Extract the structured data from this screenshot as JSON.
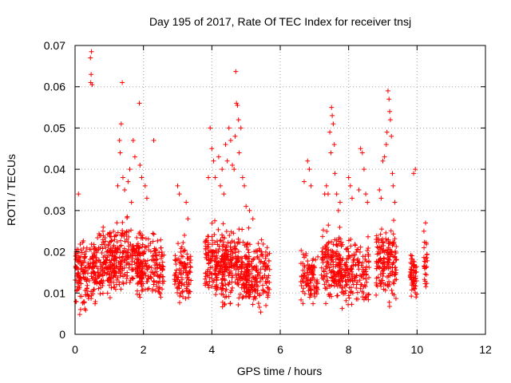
{
  "chart_data": {
    "type": "scatter",
    "title": "Day 195 of 2017, Rate Of TEC Index for receiver tnsj",
    "xlabel": "GPS time / hours",
    "ylabel": "ROTI / TECUs",
    "xlim": [
      0,
      12
    ],
    "ylim": [
      0,
      0.07
    ],
    "x_ticks": [
      "0",
      "2",
      "4",
      "6",
      "8",
      "10",
      "12"
    ],
    "y_ticks": [
      "0",
      "0.01",
      "0.02",
      "0.03",
      "0.04",
      "0.05",
      "0.06",
      "0.07"
    ],
    "grid": true,
    "marker": "+",
    "color": "#ff0000",
    "series": [
      {
        "name": "ROTI",
        "clusters": [
          {
            "x0": 0.0,
            "x1": 0.6,
            "ymin": 0.004,
            "ymax": 0.026,
            "n": 150
          },
          {
            "x0": 0.5,
            "x1": 1.2,
            "ymin": 0.006,
            "ymax": 0.028,
            "n": 160
          },
          {
            "x0": 1.0,
            "x1": 2.0,
            "ymin": 0.007,
            "ymax": 0.03,
            "n": 230
          },
          {
            "x0": 1.8,
            "x1": 2.6,
            "ymin": 0.006,
            "ymax": 0.027,
            "n": 170
          },
          {
            "x0": 2.9,
            "x1": 3.4,
            "ymin": 0.004,
            "ymax": 0.025,
            "n": 110
          },
          {
            "x0": 3.8,
            "x1": 4.4,
            "ymin": 0.005,
            "ymax": 0.03,
            "n": 160
          },
          {
            "x0": 4.3,
            "x1": 5.1,
            "ymin": 0.004,
            "ymax": 0.028,
            "n": 230
          },
          {
            "x0": 5.0,
            "x1": 5.7,
            "ymin": 0.004,
            "ymax": 0.026,
            "n": 150
          },
          {
            "x0": 6.6,
            "x1": 7.1,
            "ymin": 0.005,
            "ymax": 0.022,
            "n": 100
          },
          {
            "x0": 7.2,
            "x1": 7.8,
            "ymin": 0.005,
            "ymax": 0.028,
            "n": 150
          },
          {
            "x0": 7.7,
            "x1": 8.6,
            "ymin": 0.004,
            "ymax": 0.026,
            "n": 190
          },
          {
            "x0": 8.8,
            "x1": 9.4,
            "ymin": 0.005,
            "ymax": 0.03,
            "n": 170
          },
          {
            "x0": 9.8,
            "x1": 10.0,
            "ymin": 0.006,
            "ymax": 0.022,
            "n": 60
          },
          {
            "x0": 10.2,
            "x1": 10.3,
            "ymin": 0.007,
            "ymax": 0.027,
            "n": 25
          }
        ],
        "peaks": [
          [
            0.1,
            0.034
          ],
          [
            0.45,
            0.067
          ],
          [
            0.48,
            0.0685
          ],
          [
            0.47,
            0.063
          ],
          [
            0.46,
            0.061
          ],
          [
            0.5,
            0.0605
          ],
          [
            1.3,
            0.047
          ],
          [
            1.35,
            0.051
          ],
          [
            1.38,
            0.061
          ],
          [
            1.32,
            0.044
          ],
          [
            1.4,
            0.038
          ],
          [
            1.45,
            0.035
          ],
          [
            1.7,
            0.047
          ],
          [
            1.75,
            0.043
          ],
          [
            1.88,
            0.056
          ],
          [
            1.9,
            0.041
          ],
          [
            1.95,
            0.038
          ],
          [
            2.3,
            0.047
          ],
          [
            2.05,
            0.036
          ],
          [
            2.1,
            0.033
          ],
          [
            1.6,
            0.04
          ],
          [
            1.55,
            0.037
          ],
          [
            1.25,
            0.036
          ],
          [
            1.65,
            0.032
          ],
          [
            3.0,
            0.036
          ],
          [
            3.05,
            0.034
          ],
          [
            3.3,
            0.028
          ],
          [
            3.25,
            0.032
          ],
          [
            3.2,
            0.024
          ],
          [
            3.95,
            0.05
          ],
          [
            4.0,
            0.045
          ],
          [
            4.05,
            0.042
          ],
          [
            3.9,
            0.038
          ],
          [
            4.1,
            0.038
          ],
          [
            4.2,
            0.043
          ],
          [
            4.25,
            0.036
          ],
          [
            4.3,
            0.04
          ],
          [
            4.35,
            0.034
          ],
          [
            4.5,
            0.05
          ],
          [
            4.55,
            0.047
          ],
          [
            4.45,
            0.042
          ],
          [
            4.7,
            0.0637
          ],
          [
            4.72,
            0.056
          ],
          [
            4.75,
            0.0555
          ],
          [
            4.78,
            0.052
          ],
          [
            4.68,
            0.048
          ],
          [
            4.8,
            0.044
          ],
          [
            4.85,
            0.05
          ],
          [
            4.9,
            0.038
          ],
          [
            4.95,
            0.036
          ],
          [
            5.0,
            0.031
          ],
          [
            5.1,
            0.03
          ],
          [
            5.2,
            0.028
          ],
          [
            4.6,
            0.041
          ],
          [
            4.65,
            0.04
          ],
          [
            4.4,
            0.046
          ],
          [
            6.7,
            0.037
          ],
          [
            6.8,
            0.042
          ],
          [
            6.85,
            0.04
          ],
          [
            6.9,
            0.036
          ],
          [
            7.3,
            0.034
          ],
          [
            7.35,
            0.036
          ],
          [
            7.4,
            0.034
          ],
          [
            7.45,
            0.049
          ],
          [
            7.5,
            0.055
          ],
          [
            7.52,
            0.053
          ],
          [
            7.55,
            0.051
          ],
          [
            7.48,
            0.044
          ],
          [
            7.58,
            0.046
          ],
          [
            7.6,
            0.039
          ],
          [
            7.65,
            0.034
          ],
          [
            7.7,
            0.03
          ],
          [
            7.75,
            0.032
          ],
          [
            8.0,
            0.038
          ],
          [
            8.05,
            0.036
          ],
          [
            8.1,
            0.033
          ],
          [
            8.3,
            0.035
          ],
          [
            8.35,
            0.045
          ],
          [
            8.4,
            0.044
          ],
          [
            8.45,
            0.04
          ],
          [
            8.5,
            0.034
          ],
          [
            8.55,
            0.032
          ],
          [
            8.9,
            0.035
          ],
          [
            8.95,
            0.033
          ],
          [
            9.0,
            0.042
          ],
          [
            9.05,
            0.043
          ],
          [
            9.1,
            0.046
          ],
          [
            9.15,
            0.059
          ],
          [
            9.18,
            0.057
          ],
          [
            9.2,
            0.054
          ],
          [
            9.22,
            0.052
          ],
          [
            9.12,
            0.049
          ],
          [
            9.25,
            0.048
          ],
          [
            9.28,
            0.039
          ],
          [
            9.3,
            0.036
          ],
          [
            9.35,
            0.032
          ],
          [
            9.9,
            0.039
          ],
          [
            9.95,
            0.04
          ],
          [
            10.2,
            0.025
          ],
          [
            10.25,
            0.027
          ]
        ]
      }
    ]
  }
}
